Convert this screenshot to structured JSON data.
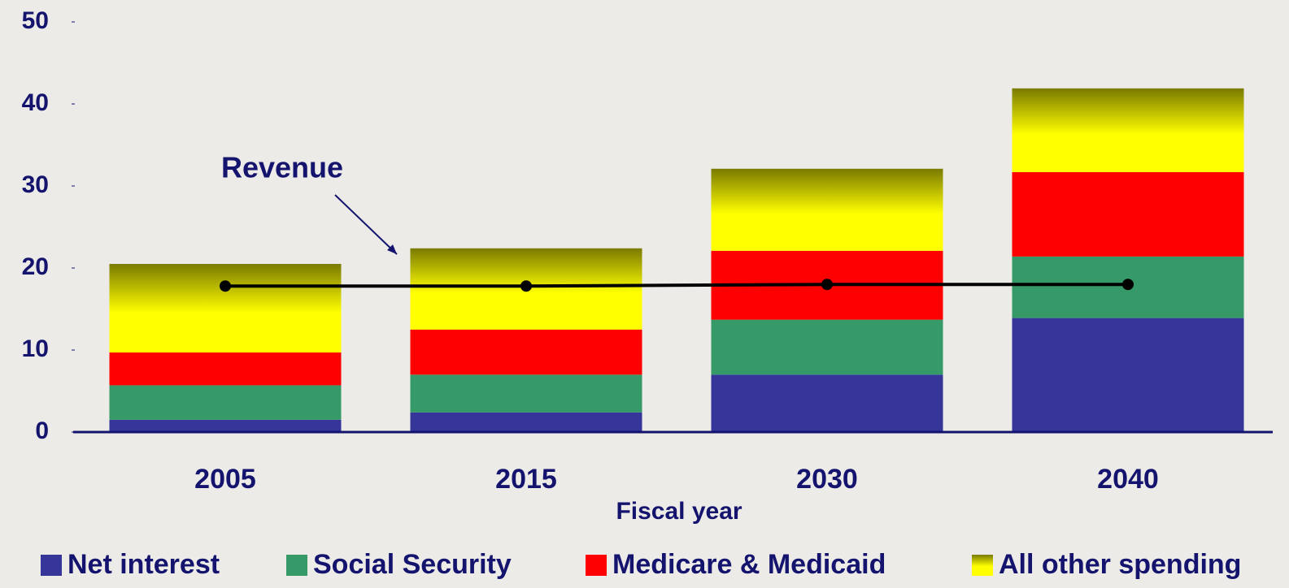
{
  "chart_data": {
    "type": "bar",
    "stacked": true,
    "x_label": "Fiscal year",
    "categories": [
      "2005",
      "2015",
      "2030",
      "2040"
    ],
    "series": [
      {
        "name": "Net interest",
        "color": "#35359a",
        "values": [
          1.5,
          2.4,
          7.0,
          13.9
        ]
      },
      {
        "name": "Social Security",
        "color": "#359a68",
        "values": [
          4.2,
          4.6,
          6.7,
          7.5
        ]
      },
      {
        "name": "Medicare & Medicaid",
        "color": "#ff0000",
        "values": [
          4.0,
          5.5,
          8.4,
          10.3
        ]
      },
      {
        "name": "All other spending",
        "color": "#ffff00",
        "gradient_top": "#7a7a00",
        "values": [
          10.8,
          9.9,
          10.0,
          10.2
        ]
      },
      {
        "name": "Revenue",
        "type": "line",
        "color": "#000000",
        "values": [
          17.8,
          17.8,
          18.0,
          18.0
        ]
      }
    ],
    "ylim": [
      0,
      50
    ],
    "yticks": [
      0,
      10,
      20,
      30,
      40,
      50
    ],
    "grid": false,
    "legend": "bottom"
  }
}
